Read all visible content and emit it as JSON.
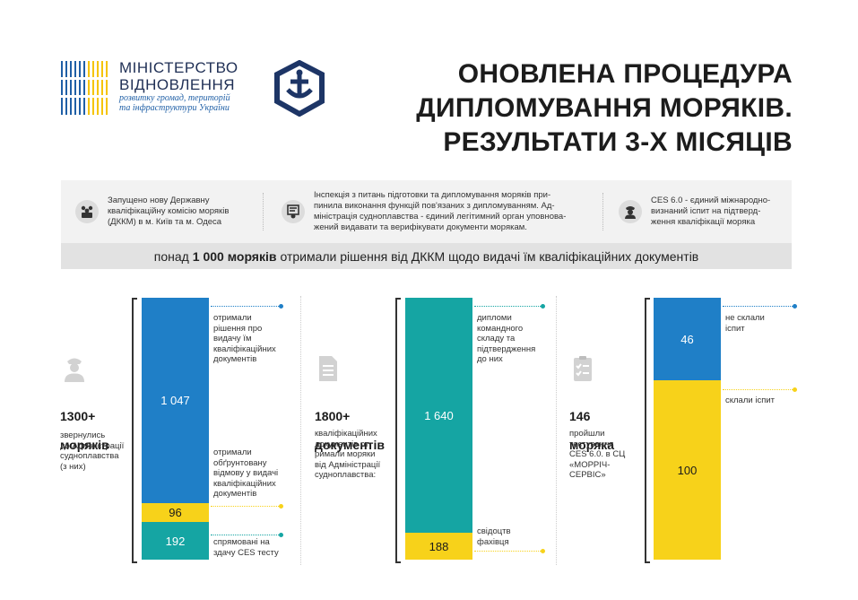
{
  "header": {
    "ministry_name_line1": "МІНІСТЕРСТВО",
    "ministry_name_line2": "ВІДНОВЛЕННЯ",
    "ministry_sub_line1": "розвитку громад, територій",
    "ministry_sub_line2": "та інфраструктури України",
    "title_line1": "ОНОВЛЕНА ПРОЦЕДУРА",
    "title_line2": "ДИПЛОМУВАННЯ МОРЯКІВ.",
    "title_line3": "РЕЗУЛЬТАТИ 3-Х МІСЯЦІВ"
  },
  "info": {
    "items": [
      {
        "icon": "commission-icon",
        "text": "Запущено нову Державну\nкваліфікаційну комісію моряків\n(ДККМ) в м. Київ та м. Одеса"
      },
      {
        "icon": "certificate-icon",
        "text": "Інспекція з питань підготовки та дипломування моряків при-\nпинила виконання функцій пов'язаних з дипломуванням. Ад-\nміністрація судноплавства  - єдиний легітимний орган уповнова-\nжений видавати та верифікувати документи морякам."
      },
      {
        "icon": "sailor-icon",
        "text": "CES 6.0 - єдиний міжнародно-\nвизнаний іспит на підтверд-\nження кваліфікації моряка"
      }
    ],
    "summary_pre": "понад",
    "summary_bold": "1 000 моряків",
    "summary_post": "отримали рішення від ДККМ щодо видачі їм кваліфікаційних документів"
  },
  "colors": {
    "blue": "#1f7fc7",
    "yellow": "#f7d21a",
    "teal": "#15a5a3"
  },
  "columns": [
    {
      "icon": "sailor-icon",
      "big_line1": "1300+",
      "big_line2": "моряків",
      "note": "звернулись\nдо Адміністрації\nсудноплавства\n(з них)",
      "labels": [
        "отримали\nрішення про\nвидачу їм\nкваліфікаційних\nдокументів",
        "отримали\nобґрунтовану\nвідмову у видачі\nкваліфікаційних\nдокументів",
        "спрямовані на\nздачу CES тесту"
      ]
    },
    {
      "icon": "document-icon",
      "big_line1": "1800+",
      "big_line2": "документів",
      "note": "кваліфікаційних\nдокументів от-\nримали моряки\nвід Адміністрації\nсудноплавства:",
      "labels": [
        "дипломи\nкомандного\nскладу та\nпідтвердження\nдо них",
        "свідоцтв\nфахівця"
      ]
    },
    {
      "icon": "checklist-icon",
      "big_line1": "146",
      "big_line2": "моряка",
      "note": "пройшли\nтестування\nCES 6.0. в СЦ\n«МОРРІЧ-\nСЕРВІС»",
      "labels": [
        "не склали\nіспит",
        "склали іспит"
      ]
    }
  ],
  "chart_data": [
    {
      "type": "bar",
      "stacked": true,
      "segments": [
        {
          "label": "1 047",
          "value": 1047,
          "color": "#1f7fc7"
        },
        {
          "label": "96",
          "value": 96,
          "color": "#f7d21a"
        },
        {
          "label": "192",
          "value": 192,
          "color": "#15a5a3"
        }
      ]
    },
    {
      "type": "bar",
      "stacked": true,
      "segments": [
        {
          "label": "1 640",
          "value": 1640,
          "color": "#15a5a3"
        },
        {
          "label": "188",
          "value": 188,
          "color": "#f7d21a"
        }
      ]
    },
    {
      "type": "bar",
      "stacked": true,
      "segments": [
        {
          "label": "46",
          "value": 46,
          "color": "#1f7fc7"
        },
        {
          "label": "100",
          "value": 100,
          "color": "#f7d21a"
        }
      ]
    }
  ]
}
